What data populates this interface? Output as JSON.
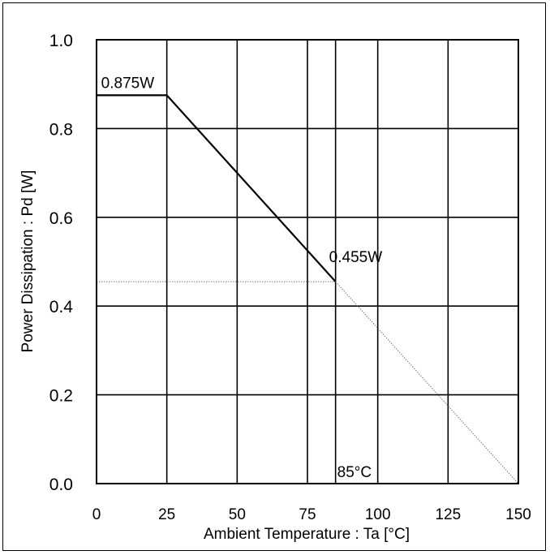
{
  "chart_data": {
    "type": "line",
    "title": "",
    "xlabel": "Ambient Temperature : Ta [°C]",
    "ylabel": "Power Dissipation : Pd [W]",
    "xlim": [
      0,
      150
    ],
    "ylim": [
      0,
      1.0
    ],
    "x_ticks": [
      0,
      25,
      50,
      75,
      100,
      125,
      150
    ],
    "x_tick_labels": [
      "0",
      "25",
      "50",
      "75",
      "100",
      "125",
      "150"
    ],
    "y_ticks": [
      0.0,
      0.2,
      0.4,
      0.6,
      0.8,
      1.0
    ],
    "y_tick_labels": [
      "0.0",
      "0.2",
      "0.4",
      "0.6",
      "0.8",
      "1.0"
    ],
    "grid": true,
    "extra_vertical_gridline_x": 85,
    "series": [
      {
        "style": "solid-thick",
        "x": [
          0,
          25,
          85
        ],
        "y": [
          0.875,
          0.875,
          0.455
        ]
      },
      {
        "style": "thin-dotted",
        "x": [
          85,
          150
        ],
        "y": [
          0.455,
          0
        ]
      }
    ],
    "guides": {
      "horizontal_y": 0.455,
      "vertical_x": 85
    },
    "annotations": [
      {
        "text": "0.875W",
        "x": 25,
        "y": 0.875
      },
      {
        "text": "0.455W",
        "x": 85,
        "y": 0.455
      },
      {
        "text": "85°C",
        "x": 85,
        "y": 0
      }
    ]
  }
}
